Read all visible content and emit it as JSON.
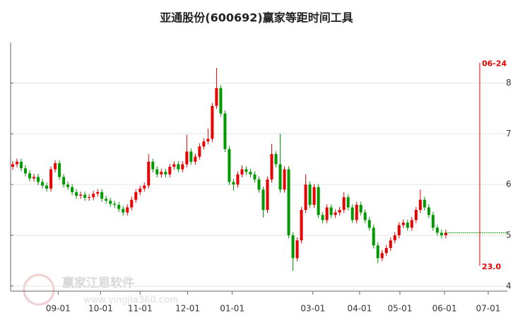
{
  "chart_data": {
    "type": "candlestick",
    "title": "亚通股份(600692)赢家等距时间工具",
    "watermark": "赢家江恩软件",
    "watermark_url": "www.yingjia360.com",
    "up_color": "#e60000",
    "down_color": "#009900",
    "xlim": [
      -0.5,
      116.5
    ],
    "ylim": [
      3.9,
      8.8
    ],
    "yticks": [
      4,
      5,
      6,
      7,
      8
    ],
    "grid": true,
    "xticks": [
      {
        "value": 10.7,
        "label": "09-01"
      },
      {
        "value": 20.7,
        "label": "10-01"
      },
      {
        "value": 30,
        "label": "11-01"
      },
      {
        "value": 41.2,
        "label": "12-01"
      },
      {
        "value": 51.7,
        "label": "01-01"
      },
      {
        "value": 70.7,
        "label": "03-01"
      },
      {
        "value": 81.7,
        "label": "04-01"
      },
      {
        "value": 91.2,
        "label": "05-01"
      },
      {
        "value": 101.7,
        "label": "06-01"
      },
      {
        "value": 112,
        "label": "07-01"
      }
    ],
    "reference_line": {
      "value": 5.05,
      "color": "#009900"
    },
    "time_marker": {
      "x": 110,
      "top": 8.4,
      "bottom": 4.4,
      "label": "06-24",
      "value_label": "23.0",
      "color": "#e60000"
    },
    "candles": [
      [
        6.35,
        6.46,
        6.29,
        6.4
      ],
      [
        6.4,
        6.51,
        6.34,
        6.45
      ],
      [
        6.45,
        6.51,
        6.26,
        6.32
      ],
      [
        6.32,
        6.38,
        6.16,
        6.22
      ],
      [
        6.22,
        6.28,
        6.06,
        6.12
      ],
      [
        6.12,
        6.21,
        6.06,
        6.15
      ],
      [
        6.15,
        6.21,
        5.99,
        6.05
      ],
      [
        6.05,
        6.11,
        5.92,
        5.98
      ],
      [
        5.98,
        6.04,
        5.86,
        5.92
      ],
      [
        5.92,
        6.36,
        5.86,
        6.3
      ],
      [
        6.3,
        6.48,
        6.24,
        6.42
      ],
      [
        6.42,
        6.48,
        6.09,
        6.15
      ],
      [
        6.15,
        6.21,
        5.94,
        6.0
      ],
      [
        6.0,
        6.06,
        5.89,
        5.95
      ],
      [
        5.95,
        6.01,
        5.79,
        5.85
      ],
      [
        5.85,
        5.91,
        5.72,
        5.78
      ],
      [
        5.78,
        5.86,
        5.72,
        5.8
      ],
      [
        5.8,
        5.86,
        5.68,
        5.74
      ],
      [
        5.74,
        5.81,
        5.68,
        5.75
      ],
      [
        5.75,
        5.88,
        5.69,
        5.82
      ],
      [
        5.82,
        5.91,
        5.76,
        5.85
      ],
      [
        5.85,
        5.91,
        5.66,
        5.72
      ],
      [
        5.72,
        5.78,
        5.62,
        5.68
      ],
      [
        5.68,
        5.74,
        5.56,
        5.62
      ],
      [
        5.62,
        5.68,
        5.54,
        5.6
      ],
      [
        5.6,
        5.66,
        5.46,
        5.52
      ],
      [
        5.52,
        5.58,
        5.39,
        5.45
      ],
      [
        5.45,
        5.61,
        5.39,
        5.55
      ],
      [
        5.55,
        5.76,
        5.49,
        5.7
      ],
      [
        5.7,
        5.91,
        5.64,
        5.85
      ],
      [
        5.85,
        5.98,
        5.79,
        5.92
      ],
      [
        5.92,
        6.04,
        5.86,
        5.98
      ],
      [
        5.98,
        6.6,
        5.92,
        6.45
      ],
      [
        6.45,
        6.51,
        6.24,
        6.3
      ],
      [
        6.3,
        6.36,
        6.14,
        6.2
      ],
      [
        6.2,
        6.31,
        6.14,
        6.25
      ],
      [
        6.25,
        6.31,
        6.14,
        6.2
      ],
      [
        6.2,
        6.41,
        6.14,
        6.35
      ],
      [
        6.35,
        6.46,
        6.29,
        6.4
      ],
      [
        6.4,
        6.46,
        6.24,
        6.3
      ],
      [
        6.3,
        6.46,
        6.24,
        6.4
      ],
      [
        6.4,
        6.98,
        6.34,
        6.65
      ],
      [
        6.65,
        6.71,
        6.39,
        6.45
      ],
      [
        6.45,
        6.61,
        6.39,
        6.55
      ],
      [
        6.55,
        6.81,
        6.49,
        6.75
      ],
      [
        6.75,
        6.91,
        6.69,
        6.85
      ],
      [
        6.85,
        7.1,
        6.79,
        6.9
      ],
      [
        6.9,
        7.61,
        6.84,
        7.55
      ],
      [
        7.55,
        8.3,
        7.49,
        7.9
      ],
      [
        7.9,
        7.96,
        7.34,
        7.4
      ],
      [
        7.4,
        7.46,
        6.64,
        6.7
      ],
      [
        6.7,
        6.76,
        5.99,
        6.05
      ],
      [
        6.05,
        6.11,
        5.88,
        6.0
      ],
      [
        6.0,
        6.26,
        5.94,
        6.2
      ],
      [
        6.2,
        6.38,
        6.14,
        6.3
      ],
      [
        6.3,
        6.36,
        6.19,
        6.25
      ],
      [
        6.25,
        6.31,
        6.14,
        6.2
      ],
      [
        6.2,
        6.26,
        6.04,
        6.1
      ],
      [
        6.1,
        6.16,
        5.84,
        5.9
      ],
      [
        5.9,
        5.96,
        5.35,
        5.5
      ],
      [
        5.5,
        6.16,
        5.44,
        6.1
      ],
      [
        6.1,
        6.8,
        6.04,
        6.6
      ],
      [
        6.6,
        6.66,
        6.34,
        6.4
      ],
      [
        6.4,
        7.0,
        5.84,
        5.9
      ],
      [
        5.9,
        6.36,
        5.84,
        6.3
      ],
      [
        6.3,
        6.36,
        4.94,
        5.0
      ],
      [
        5.0,
        5.06,
        4.3,
        4.55
      ],
      [
        4.55,
        4.96,
        4.49,
        4.9
      ],
      [
        4.9,
        5.56,
        4.84,
        5.5
      ],
      [
        5.5,
        6.2,
        5.44,
        6.0
      ],
      [
        6.0,
        6.06,
        5.54,
        5.6
      ],
      [
        5.6,
        6.01,
        5.54,
        5.95
      ],
      [
        5.95,
        6.01,
        5.34,
        5.4
      ],
      [
        5.4,
        5.46,
        5.24,
        5.3
      ],
      [
        5.3,
        5.61,
        5.24,
        5.55
      ],
      [
        5.55,
        5.61,
        5.34,
        5.4
      ],
      [
        5.4,
        5.51,
        5.34,
        5.45
      ],
      [
        5.45,
        5.56,
        5.39,
        5.5
      ],
      [
        5.5,
        5.85,
        5.44,
        5.75
      ],
      [
        5.75,
        5.81,
        5.49,
        5.55
      ],
      [
        5.55,
        5.61,
        5.24,
        5.3
      ],
      [
        5.3,
        5.66,
        5.24,
        5.6
      ],
      [
        5.6,
        5.66,
        5.39,
        5.45
      ],
      [
        5.45,
        5.51,
        5.24,
        5.3
      ],
      [
        5.3,
        5.36,
        5.09,
        5.15
      ],
      [
        5.15,
        5.21,
        4.74,
        4.8
      ],
      [
        4.8,
        4.86,
        4.45,
        4.55
      ],
      [
        4.55,
        4.71,
        4.49,
        4.65
      ],
      [
        4.65,
        4.81,
        4.59,
        4.75
      ],
      [
        4.75,
        4.96,
        4.69,
        4.9
      ],
      [
        4.9,
        5.06,
        4.84,
        5.0
      ],
      [
        5.0,
        5.26,
        4.94,
        5.2
      ],
      [
        5.2,
        5.31,
        5.14,
        5.25
      ],
      [
        5.25,
        5.31,
        5.09,
        5.15
      ],
      [
        5.15,
        5.36,
        5.09,
        5.3
      ],
      [
        5.3,
        5.56,
        5.24,
        5.5
      ],
      [
        5.5,
        5.9,
        5.44,
        5.7
      ],
      [
        5.7,
        5.76,
        5.49,
        5.55
      ],
      [
        5.55,
        5.61,
        5.34,
        5.4
      ],
      [
        5.4,
        5.46,
        5.09,
        5.15
      ],
      [
        5.15,
        5.21,
        4.99,
        5.05
      ],
      [
        5.05,
        5.11,
        4.94,
        5.0
      ],
      [
        5.0,
        5.11,
        4.94,
        5.05
      ]
    ]
  }
}
